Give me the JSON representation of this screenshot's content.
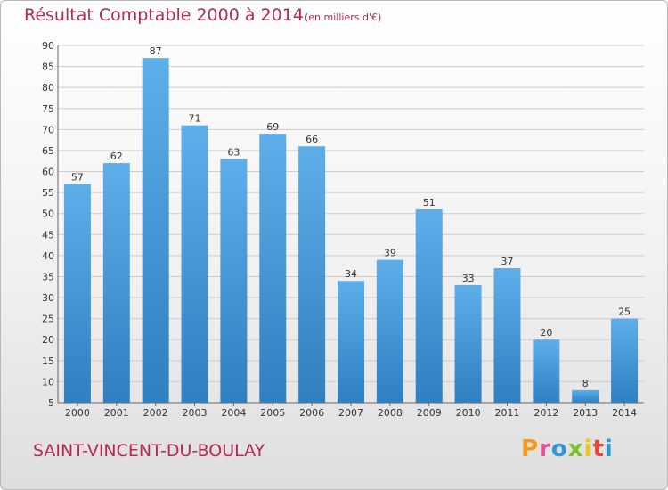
{
  "header": {
    "title": "Résultat Comptable 2000 à 2014",
    "subtitle": "(en milliers d'€)"
  },
  "footer": {
    "commune": "SAINT-VINCENT-DU-BOULAY",
    "brand": "Proxiti",
    "brand_colors": [
      "#f39a1e",
      "#e84f8a",
      "#2f96d8",
      "#7bbf2a",
      "#f0c419",
      "#e8463b",
      "#2f96d8"
    ]
  },
  "colors": {
    "bar_top": "#5eaeea",
    "bar_bottom": "#2f7fc1",
    "grid": "#cccccc",
    "title": "#b52a4f"
  },
  "chart_data": {
    "type": "bar",
    "categories": [
      "2000",
      "2001",
      "2002",
      "2003",
      "2004",
      "2005",
      "2006",
      "2007",
      "2008",
      "2009",
      "2010",
      "2011",
      "2012",
      "2013",
      "2014"
    ],
    "values": [
      57,
      62,
      87,
      71,
      63,
      69,
      66,
      34,
      39,
      51,
      33,
      37,
      20,
      8,
      25
    ],
    "ylim": [
      5,
      90
    ],
    "yticks": [
      5,
      10,
      15,
      20,
      25,
      30,
      35,
      40,
      45,
      50,
      55,
      60,
      65,
      70,
      75,
      80,
      85,
      90
    ],
    "grid": true,
    "data_labels": true
  }
}
